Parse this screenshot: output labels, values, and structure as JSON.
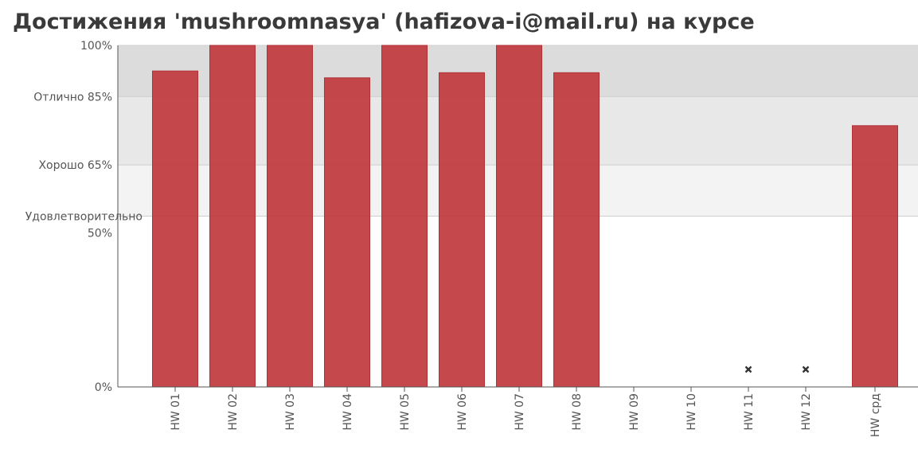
{
  "chart_data": {
    "type": "bar",
    "title": "Достижения 'mushroomnasya' (hafizova-i@mail.ru) на курсе",
    "categories": [
      "HW 01",
      "HW 02",
      "HW 03",
      "HW 04",
      "HW 05",
      "HW 06",
      "HW 07",
      "HW 08",
      "HW 09",
      "HW 10",
      "HW 11",
      "HW 12",
      "HW срд"
    ],
    "series": [
      {
        "values": [
          92.5,
          100,
          100,
          90.5,
          100,
          92,
          100,
          92,
          0,
          0,
          null,
          null,
          76.5
        ]
      }
    ],
    "missing_markers": [
      "HW 11",
      "HW 12"
    ],
    "ylim": [
      0,
      100
    ],
    "yticks": [
      {
        "value": 100,
        "label": "100%"
      },
      {
        "value": 85,
        "label": "Отлично 85%"
      },
      {
        "value": 65,
        "label": "Хорошо 65%"
      },
      {
        "value": 50,
        "label": "Удовлетворительно 50%",
        "lines": [
          "Удовлетворительно",
          "50%"
        ]
      },
      {
        "value": 0,
        "label": "0%"
      }
    ],
    "bands": [
      {
        "from": 85,
        "to": 100,
        "color": "#dcdcdc"
      },
      {
        "from": 65,
        "to": 85,
        "color": "#e8e8e8"
      },
      {
        "from": 50,
        "to": 65,
        "color": "#f3f3f3"
      }
    ],
    "bar_color": "#c0393d",
    "grid": true
  }
}
